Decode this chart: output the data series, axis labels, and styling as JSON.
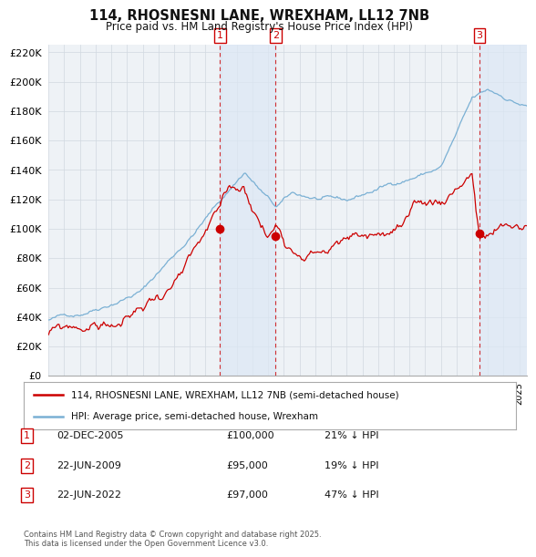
{
  "title": "114, RHOSNESNI LANE, WREXHAM, LL12 7NB",
  "subtitle": "Price paid vs. HM Land Registry's House Price Index (HPI)",
  "background_color": "#ffffff",
  "plot_bg_color": "#f0f4f8",
  "grid_color": "#d0d8e0",
  "hpi_color": "#7ab0d4",
  "price_color": "#cc0000",
  "shade_color": "#dce8f5",
  "ylim": [
    0,
    220000
  ],
  "yticks": [
    0,
    20000,
    40000,
    60000,
    80000,
    100000,
    120000,
    140000,
    160000,
    180000,
    200000,
    220000
  ],
  "transactions": [
    {
      "label": "1",
      "date": "02-DEC-2005",
      "price": 100000,
      "hpi_diff": "21% ↓ HPI",
      "x_approx": 2005.92
    },
    {
      "label": "2",
      "date": "22-JUN-2009",
      "price": 95000,
      "hpi_diff": "19% ↓ HPI",
      "x_approx": 2009.47
    },
    {
      "label": "3",
      "date": "22-JUN-2022",
      "price": 97000,
      "hpi_diff": "47% ↓ HPI",
      "x_approx": 2022.47
    }
  ],
  "legend_line1": "114, RHOSNESNI LANE, WREXHAM, LL12 7NB (semi-detached house)",
  "legend_line2": "HPI: Average price, semi-detached house, Wrexham",
  "footnote": "Contains HM Land Registry data © Crown copyright and database right 2025.\nThis data is licensed under the Open Government Licence v3.0.",
  "xmin": 1995,
  "xmax": 2025.5
}
